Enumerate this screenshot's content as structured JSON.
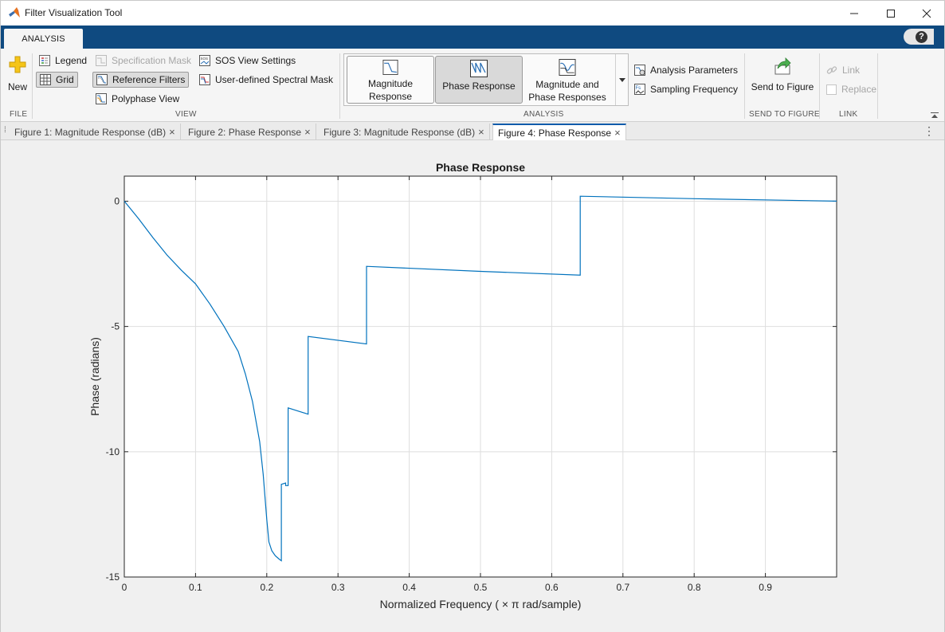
{
  "window": {
    "title": "Filter Visualization Tool"
  },
  "ribbon": {
    "tab": "ANALYSIS",
    "help_glyph": "?"
  },
  "toolstrip": {
    "file": {
      "label": "FILE",
      "new": "New"
    },
    "view": {
      "label": "VIEW",
      "legend": "Legend",
      "grid": "Grid",
      "specification_mask": "Specification Mask",
      "reference_filters": "Reference Filters",
      "polyphase_view": "Polyphase View",
      "sos_view_settings": "SOS View Settings",
      "user_spectral_mask": "User-defined Spectral Mask"
    },
    "analysis": {
      "label": "ANALYSIS",
      "magnitude_response_l1": "Magnitude",
      "magnitude_response_l2": "Response",
      "phase_response": "Phase Response",
      "mag_phase_l1": "Magnitude and",
      "mag_phase_l2": "Phase Responses",
      "analysis_parameters": "Analysis Parameters",
      "sampling_frequency": "Sampling Frequency"
    },
    "send": {
      "label": "SEND TO FIGURE",
      "send_to_figure": "Send to Figure"
    },
    "link": {
      "label": "LINK",
      "link": "Link",
      "replace": "Replace"
    }
  },
  "document_tabs": [
    {
      "label": "Figure 1: Magnitude Response (dB)",
      "active": false
    },
    {
      "label": "Figure 2: Phase Response",
      "active": false
    },
    {
      "label": "Figure 3: Magnitude Response (dB)",
      "active": false
    },
    {
      "label": "Figure 4: Phase Response",
      "active": true
    }
  ],
  "colors": {
    "line": "#0072bd",
    "tabstrip": "#0f4a80",
    "grid": "#dedede"
  },
  "chart_data": {
    "type": "line",
    "title": "Phase Response",
    "xlabel": "Normalized  Frequency  ( × π  rad/sample)",
    "ylabel": "Phase (radians)",
    "xlim": [
      0,
      1
    ],
    "ylim": [
      -15,
      1
    ],
    "xticks": [
      "0",
      "0.1",
      "0.2",
      "0.3",
      "0.4",
      "0.5",
      "0.6",
      "0.7",
      "0.8",
      "0.9"
    ],
    "yticks": [
      "0",
      "-5",
      "-10",
      "-15"
    ],
    "grid": true,
    "series": [
      {
        "x": [
          0,
          0.02,
          0.04,
          0.06,
          0.08,
          0.1,
          0.12,
          0.14,
          0.16,
          0.17,
          0.18,
          0.19,
          0.195,
          0.2,
          0.203,
          0.207,
          0.212,
          0.218,
          0.2205,
          0.2205,
          0.2265,
          0.2265,
          0.23,
          0.23,
          0.258,
          0.258,
          0.34,
          0.34,
          0.5,
          0.64,
          0.64,
          0.8,
          1.0
        ],
        "y": [
          0,
          -0.7,
          -1.45,
          -2.15,
          -2.75,
          -3.3,
          -4.1,
          -5.0,
          -6.0,
          -6.9,
          -8.0,
          -9.6,
          -10.9,
          -12.7,
          -13.6,
          -13.95,
          -14.15,
          -14.3,
          -14.35,
          -11.3,
          -11.25,
          -11.35,
          -11.35,
          -8.25,
          -8.5,
          -5.4,
          -5.7,
          -2.6,
          -2.8,
          -2.95,
          0.2,
          0.1,
          0.0
        ]
      }
    ]
  }
}
